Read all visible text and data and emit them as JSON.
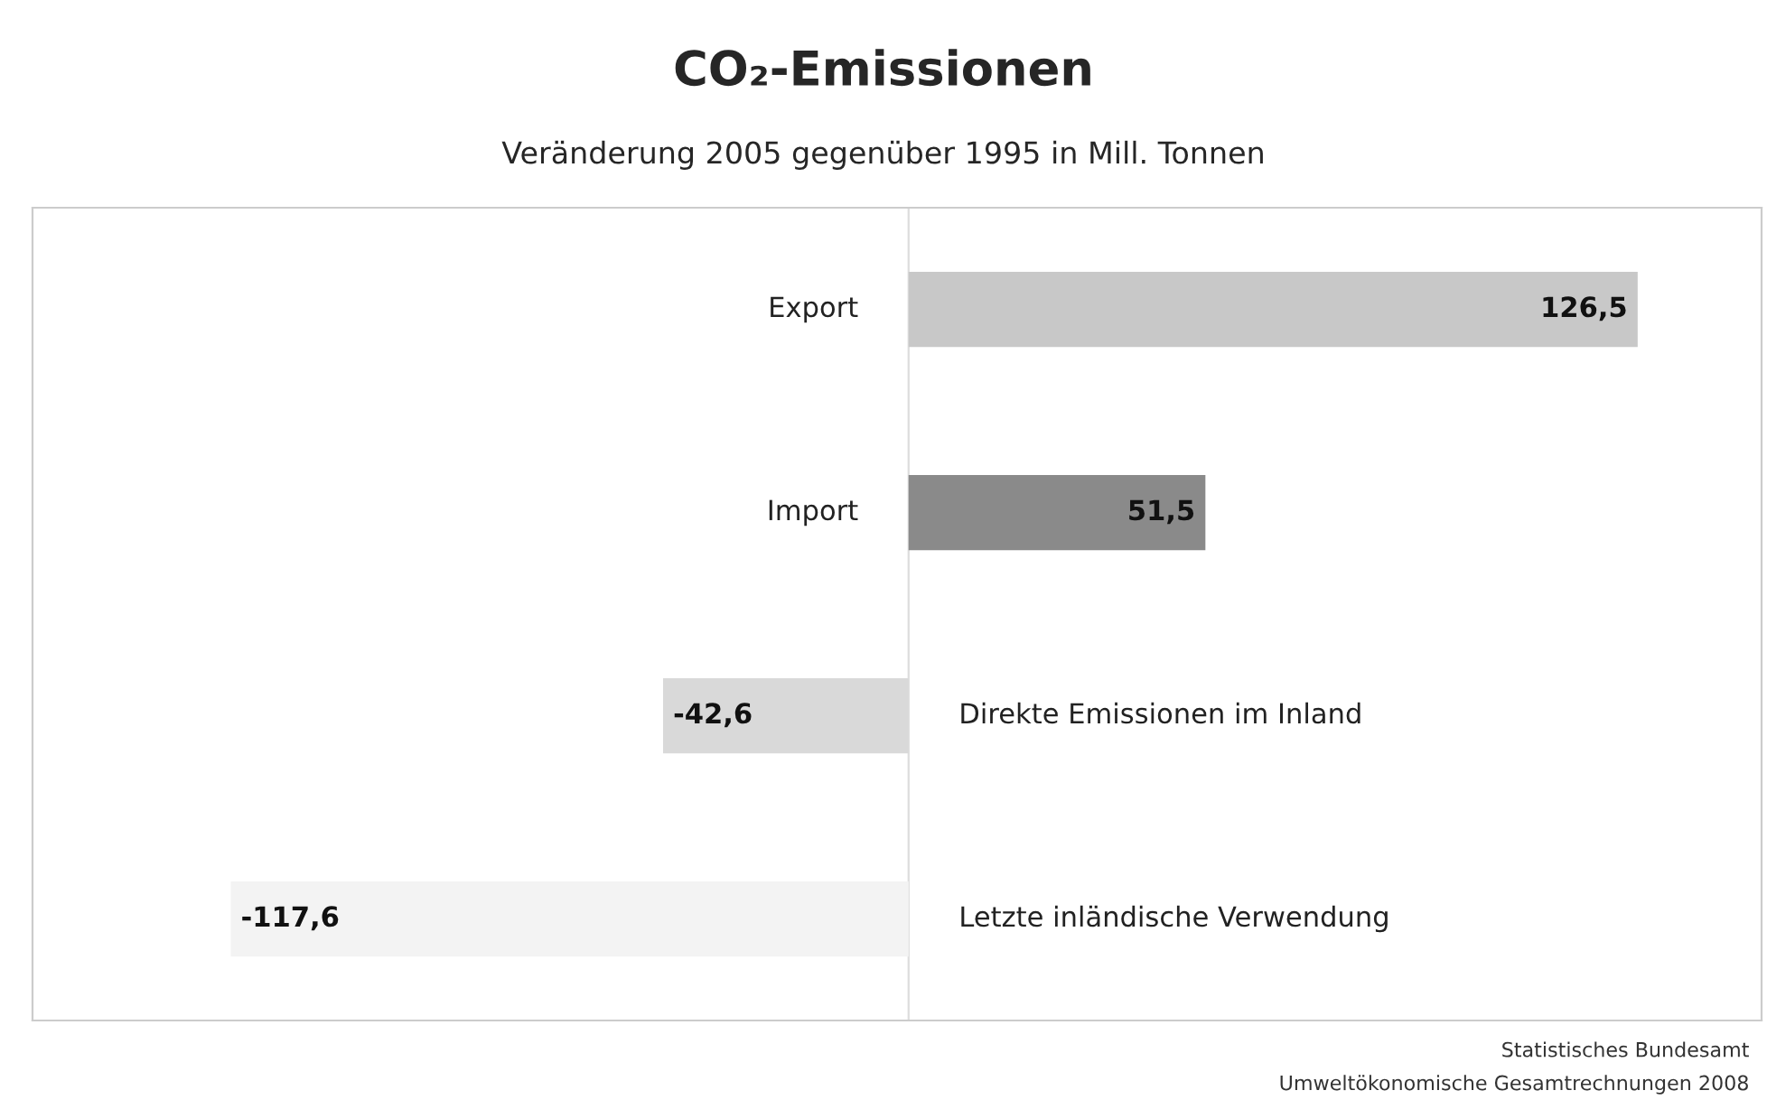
{
  "chart_data": {
    "type": "bar",
    "orientation": "horizontal",
    "title": "CO₂-Emissionen",
    "subtitle": "Veränderung 2005 gegenüber 1995 in Mill. Tonnen",
    "categories": [
      "Export",
      "Import",
      "Direkte Emissionen im Inland",
      "Letzte inländische Verwendung"
    ],
    "values": [
      126.5,
      51.5,
      -42.6,
      -117.6
    ],
    "colors": [
      "#c8c8c8",
      "#8a8a8a",
      "#d9d9d9",
      "#f3f3f3"
    ],
    "value_labels": [
      "126,5",
      "51,5",
      "-42,6",
      "-117,6"
    ],
    "xlim": [
      -152,
      148
    ],
    "annotations": [
      "Statistisches Bundesamt",
      "Umweltökonomische Gesamtrechnungen 2008"
    ]
  }
}
